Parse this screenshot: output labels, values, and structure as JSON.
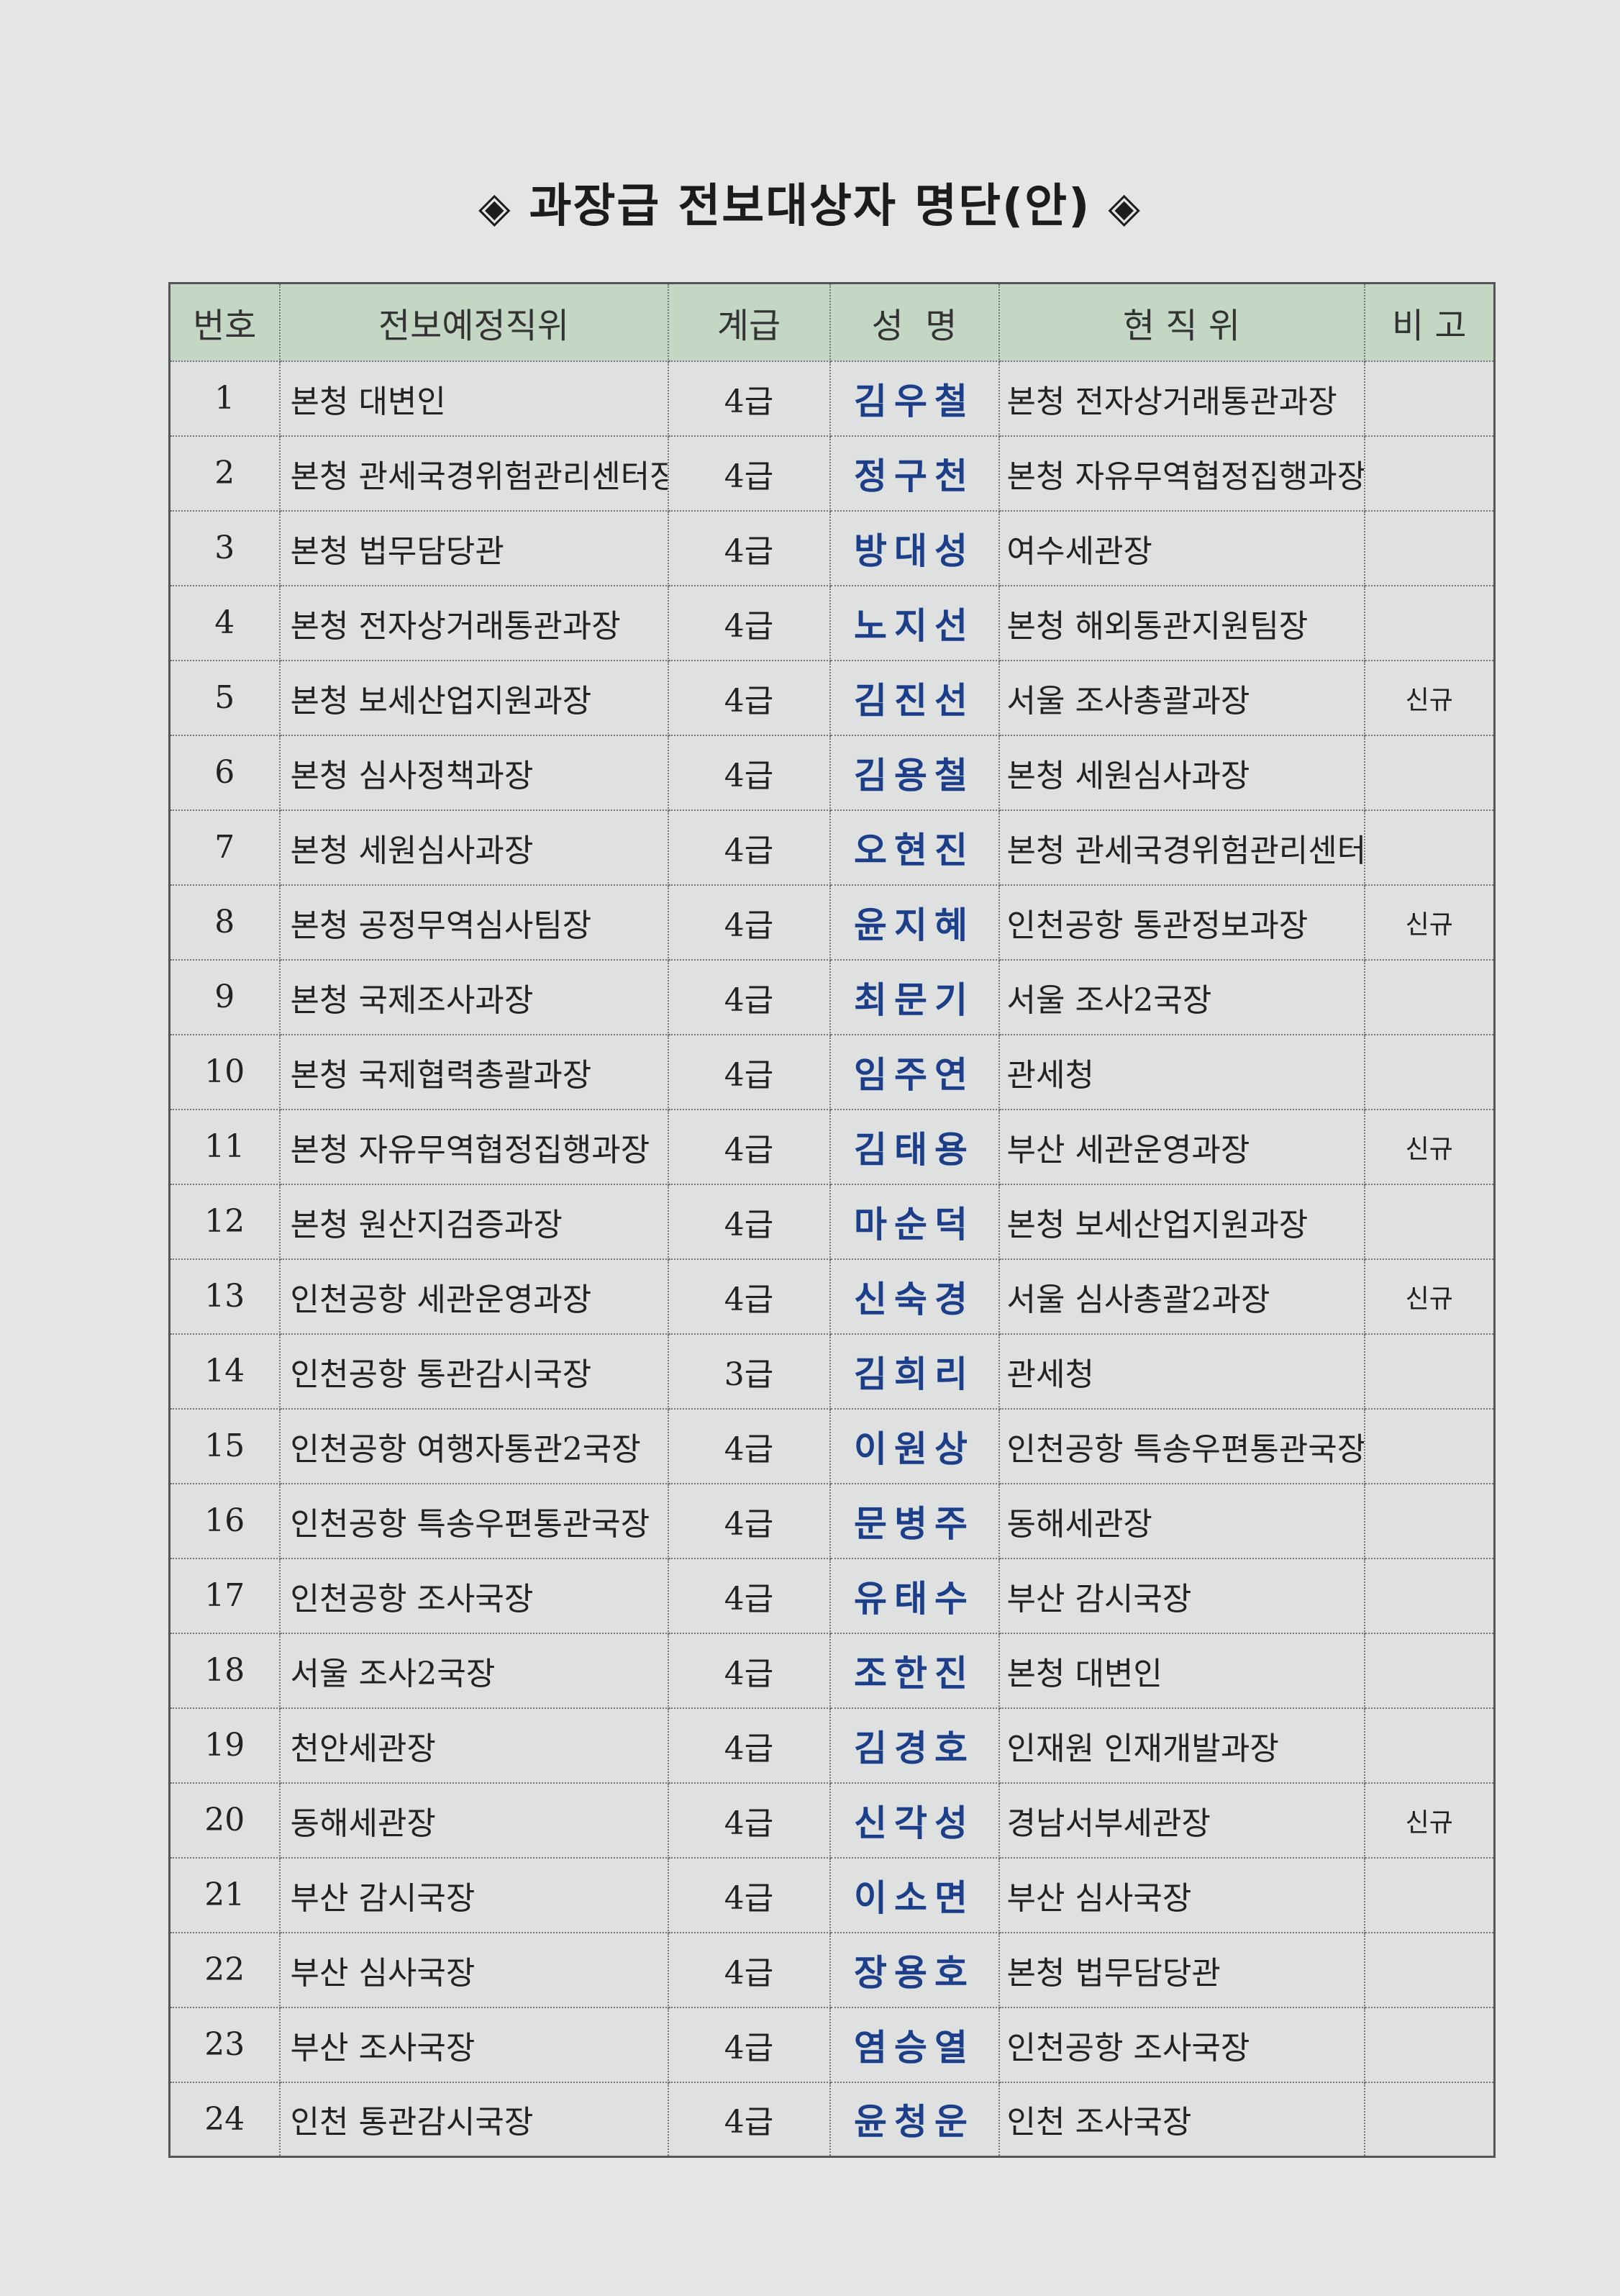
{
  "title": "과장급 전보대상자 명단(안)",
  "title_marker": "◈",
  "headers": [
    "번호",
    "전보예정직위",
    "계급",
    "성  명",
    "현 직 위",
    "비 고"
  ],
  "rows": [
    {
      "no": "1",
      "new_position": "본청 대변인",
      "rank": "4급",
      "name": "김우철",
      "current_position": "본청 전자상거래통관과장",
      "note": ""
    },
    {
      "no": "2",
      "new_position": "본청 관세국경위험관리센터장",
      "rank": "4급",
      "name": "정구천",
      "current_position": "본청 자유무역협정집행과장",
      "note": ""
    },
    {
      "no": "3",
      "new_position": "본청 법무담당관",
      "rank": "4급",
      "name": "방대성",
      "current_position": "여수세관장",
      "note": ""
    },
    {
      "no": "4",
      "new_position": "본청 전자상거래통관과장",
      "rank": "4급",
      "name": "노지선",
      "current_position": "본청 해외통관지원팀장",
      "note": ""
    },
    {
      "no": "5",
      "new_position": "본청 보세산업지원과장",
      "rank": "4급",
      "name": "김진선",
      "current_position": "서울 조사총괄과장",
      "note": "신규"
    },
    {
      "no": "6",
      "new_position": "본청 심사정책과장",
      "rank": "4급",
      "name": "김용철",
      "current_position": "본청 세원심사과장",
      "note": ""
    },
    {
      "no": "7",
      "new_position": "본청 세원심사과장",
      "rank": "4급",
      "name": "오현진",
      "current_position": "본청 관세국경위험관리센터장",
      "note": ""
    },
    {
      "no": "8",
      "new_position": "본청 공정무역심사팀장",
      "rank": "4급",
      "name": "윤지혜",
      "current_position": "인천공항 통관정보과장",
      "note": "신규"
    },
    {
      "no": "9",
      "new_position": "본청 국제조사과장",
      "rank": "4급",
      "name": "최문기",
      "current_position": "서울 조사2국장",
      "note": ""
    },
    {
      "no": "10",
      "new_position": "본청 국제협력총괄과장",
      "rank": "4급",
      "name": "임주연",
      "current_position": "관세청",
      "note": ""
    },
    {
      "no": "11",
      "new_position": "본청 자유무역협정집행과장",
      "rank": "4급",
      "name": "김태용",
      "current_position": "부산 세관운영과장",
      "note": "신규"
    },
    {
      "no": "12",
      "new_position": "본청 원산지검증과장",
      "rank": "4급",
      "name": "마순덕",
      "current_position": "본청 보세산업지원과장",
      "note": ""
    },
    {
      "no": "13",
      "new_position": "인천공항 세관운영과장",
      "rank": "4급",
      "name": "신숙경",
      "current_position": "서울 심사총괄2과장",
      "note": "신규"
    },
    {
      "no": "14",
      "new_position": "인천공항 통관감시국장",
      "rank": "3급",
      "name": "김희리",
      "current_position": "관세청",
      "note": ""
    },
    {
      "no": "15",
      "new_position": "인천공항 여행자통관2국장",
      "rank": "4급",
      "name": "이원상",
      "current_position": "인천공항 특송우편통관국장",
      "note": ""
    },
    {
      "no": "16",
      "new_position": "인천공항 특송우편통관국장",
      "rank": "4급",
      "name": "문병주",
      "current_position": "동해세관장",
      "note": ""
    },
    {
      "no": "17",
      "new_position": "인천공항 조사국장",
      "rank": "4급",
      "name": "유태수",
      "current_position": "부산 감시국장",
      "note": ""
    },
    {
      "no": "18",
      "new_position": "서울 조사2국장",
      "rank": "4급",
      "name": "조한진",
      "current_position": "본청 대변인",
      "note": ""
    },
    {
      "no": "19",
      "new_position": "천안세관장",
      "rank": "4급",
      "name": "김경호",
      "current_position": "인재원 인재개발과장",
      "note": ""
    },
    {
      "no": "20",
      "new_position": "동해세관장",
      "rank": "4급",
      "name": "신각성",
      "current_position": "경남서부세관장",
      "note": "신규"
    },
    {
      "no": "21",
      "new_position": "부산 감시국장",
      "rank": "4급",
      "name": "이소면",
      "current_position": "부산 심사국장",
      "note": ""
    },
    {
      "no": "22",
      "new_position": "부산 심사국장",
      "rank": "4급",
      "name": "장용호",
      "current_position": "본청 법무담당관",
      "note": ""
    },
    {
      "no": "23",
      "new_position": "부산 조사국장",
      "rank": "4급",
      "name": "염승열",
      "current_position": "인천공항 조사국장",
      "note": ""
    },
    {
      "no": "24",
      "new_position": "인천 통관감시국장",
      "rank": "4급",
      "name": "윤청운",
      "current_position": "인천 조사국장",
      "note": ""
    }
  ]
}
